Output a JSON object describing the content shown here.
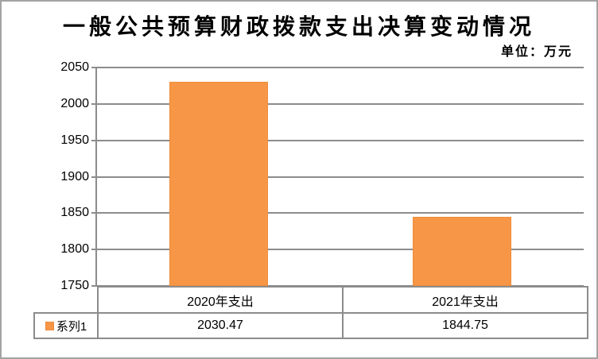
{
  "header": {
    "title": "一般公共预算财政拨款支出决算变动情况",
    "unit_label": "单位：万元"
  },
  "chart_data": {
    "type": "bar",
    "title": "一般公共预算财政拨款支出决算变动情况",
    "categories": [
      "2020年支出",
      "2021年支出"
    ],
    "series": [
      {
        "name": "系列1",
        "values": [
          2030.47,
          1844.75
        ]
      }
    ],
    "xlabel": "",
    "ylabel": "",
    "unit": "万元",
    "ylim": [
      1750,
      2050
    ],
    "ytick_step": 50,
    "yticks": [
      "2050",
      "2000",
      "1950",
      "1900",
      "1850",
      "1800",
      "1750"
    ],
    "grid": true,
    "legend_position": "data-table-left",
    "bar_color": "#f79646",
    "bar_border_color": "#ec8d3c",
    "gridline_color": "#8c8c8c"
  },
  "data_table": {
    "series_label": "系列1",
    "values": [
      "2030.47",
      "1844.75"
    ]
  }
}
